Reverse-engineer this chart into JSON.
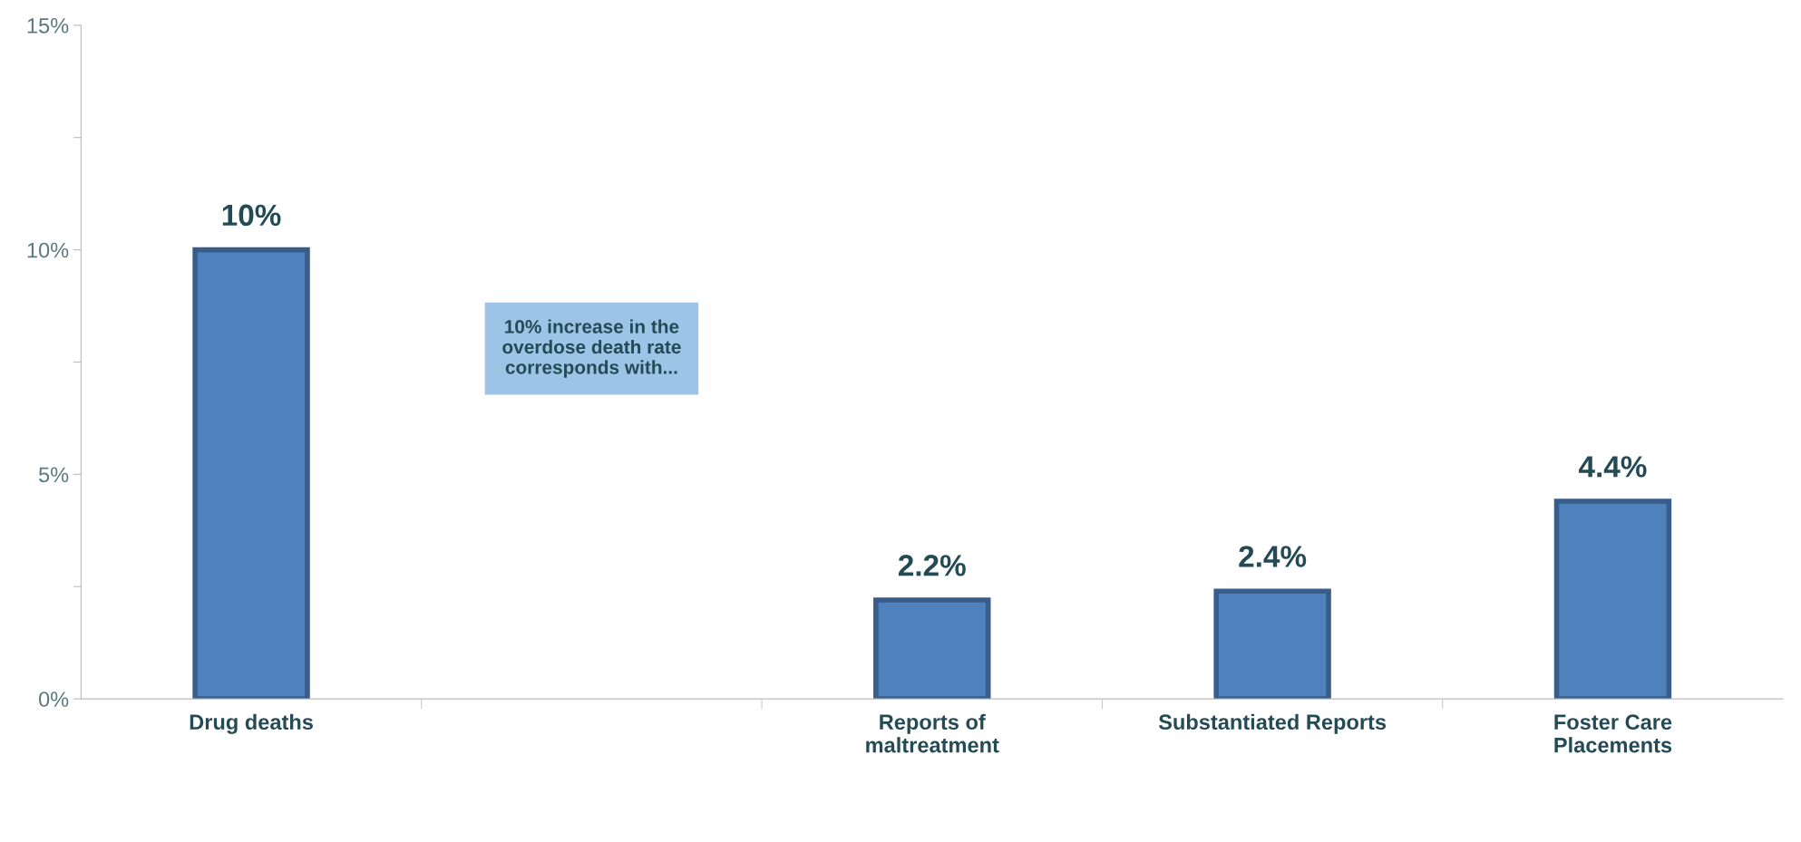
{
  "chart_data": {
    "type": "bar",
    "categories": [
      "Drug deaths",
      null,
      "Reports of\nmaltreatment",
      "Substantiated Reports",
      "Foster Care\nPlacements"
    ],
    "values": [
      10,
      null,
      2.2,
      2.4,
      4.4
    ],
    "color": "#4f81bd",
    "value_labels": [
      "10%",
      null,
      "2.2%",
      "2.4%",
      "4.4%"
    ],
    "ylim": [
      0,
      15
    ],
    "yticks": [
      {
        "value": 0,
        "label": "0%"
      },
      {
        "value": 2.5,
        "label": null
      },
      {
        "value": 5,
        "label": "5%"
      },
      {
        "value": 7.5,
        "label": null
      },
      {
        "value": 10,
        "label": "10%"
      },
      {
        "value": 12.5,
        "label": null
      },
      {
        "value": 15,
        "label": "15%"
      }
    ],
    "annotations": [
      "10% increase in the\noverdose death rate\ncorresponds with..."
    ],
    "grid": false
  }
}
